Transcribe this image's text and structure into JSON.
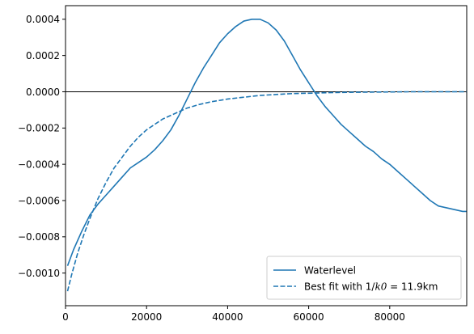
{
  "chart_data": {
    "type": "line",
    "title": "",
    "xlabel": "",
    "ylabel": "",
    "xlim": [
      0,
      99000
    ],
    "ylim": [
      -0.00118,
      0.000475
    ],
    "grid": false,
    "legend_placement": "lower-right",
    "colors": {
      "series": "#1f77b4",
      "zero_line": "#000000",
      "frame": "#000000"
    },
    "x_ticks": [
      0,
      20000,
      40000,
      60000,
      80000
    ],
    "x_tick_labels": [
      "0",
      "20000",
      "40000",
      "60000",
      "80000"
    ],
    "y_ticks": [
      0.0004,
      0.0002,
      0.0,
      -0.0002,
      -0.0004,
      -0.0006,
      -0.0008,
      -0.001
    ],
    "y_tick_labels": [
      "0.0004",
      "0.0002",
      "0.0000",
      "−0.0002",
      "−0.0004",
      "−0.0006",
      "−0.0008",
      "−0.0010"
    ],
    "hline": 0.0,
    "series": [
      {
        "name": "Waterlevel",
        "style": "solid",
        "x": [
          500,
          2000,
          4000,
          6000,
          8000,
          10000,
          12000,
          14000,
          16000,
          18000,
          20000,
          22000,
          24000,
          26000,
          28000,
          30000,
          32000,
          34000,
          36000,
          38000,
          40000,
          42000,
          44000,
          46000,
          47000,
          48000,
          50000,
          52000,
          54000,
          56000,
          58000,
          60000,
          62000,
          64000,
          66000,
          68000,
          70000,
          72000,
          74000,
          76000,
          78000,
          80000,
          82000,
          84000,
          86000,
          88000,
          90000,
          92000,
          94000,
          96000,
          98000,
          99000
        ],
        "y": [
          -0.00096,
          -0.00087,
          -0.00077,
          -0.00068,
          -0.00062,
          -0.00057,
          -0.00052,
          -0.00047,
          -0.00042,
          -0.00039,
          -0.00036,
          -0.00032,
          -0.00027,
          -0.00021,
          -0.00013,
          -4e-05,
          5e-05,
          0.00013,
          0.0002,
          0.00027,
          0.00032,
          0.00036,
          0.00039,
          0.0004,
          0.0004,
          0.0004,
          0.00038,
          0.00034,
          0.00028,
          0.0002,
          0.00012,
          5e-05,
          -2e-05,
          -8e-05,
          -0.00013,
          -0.00018,
          -0.00022,
          -0.00026,
          -0.0003,
          -0.00033,
          -0.00037,
          -0.0004,
          -0.00044,
          -0.00048,
          -0.00052,
          -0.00056,
          -0.0006,
          -0.00063,
          -0.00064,
          -0.00065,
          -0.00066,
          -0.00066
        ]
      },
      {
        "name": "Best fit with 1/k0 = 11.9km",
        "name_prefix": "Best fit with ",
        "name_math": "1/k0 = 11.9",
        "name_suffix": "km",
        "style": "dashed",
        "x": [
          500,
          1500,
          3000,
          4500,
          6000,
          8000,
          10000,
          12000,
          14000,
          16000,
          18000,
          20000,
          22000,
          24000,
          26000,
          28000,
          30000,
          33000,
          36000,
          40000,
          44000,
          48000,
          52000,
          56000,
          60000,
          65000,
          70000,
          75000,
          80000,
          85000,
          90000,
          95000,
          99000
        ],
        "y": [
          -0.0011,
          -0.00101,
          -0.00089,
          -0.00079,
          -0.0007,
          -0.00059,
          -0.0005,
          -0.00042,
          -0.00036,
          -0.0003,
          -0.00025,
          -0.00021,
          -0.00018,
          -0.00015,
          -0.00013,
          -0.00011,
          -9e-05,
          -7e-05,
          -5.5e-05,
          -4e-05,
          -3e-05,
          -2e-05,
          -1.5e-05,
          -1e-05,
          -8e-06,
          -5e-06,
          -3e-06,
          -2e-06,
          -1e-06,
          0.0,
          0.0,
          0.0,
          0.0
        ]
      }
    ]
  }
}
